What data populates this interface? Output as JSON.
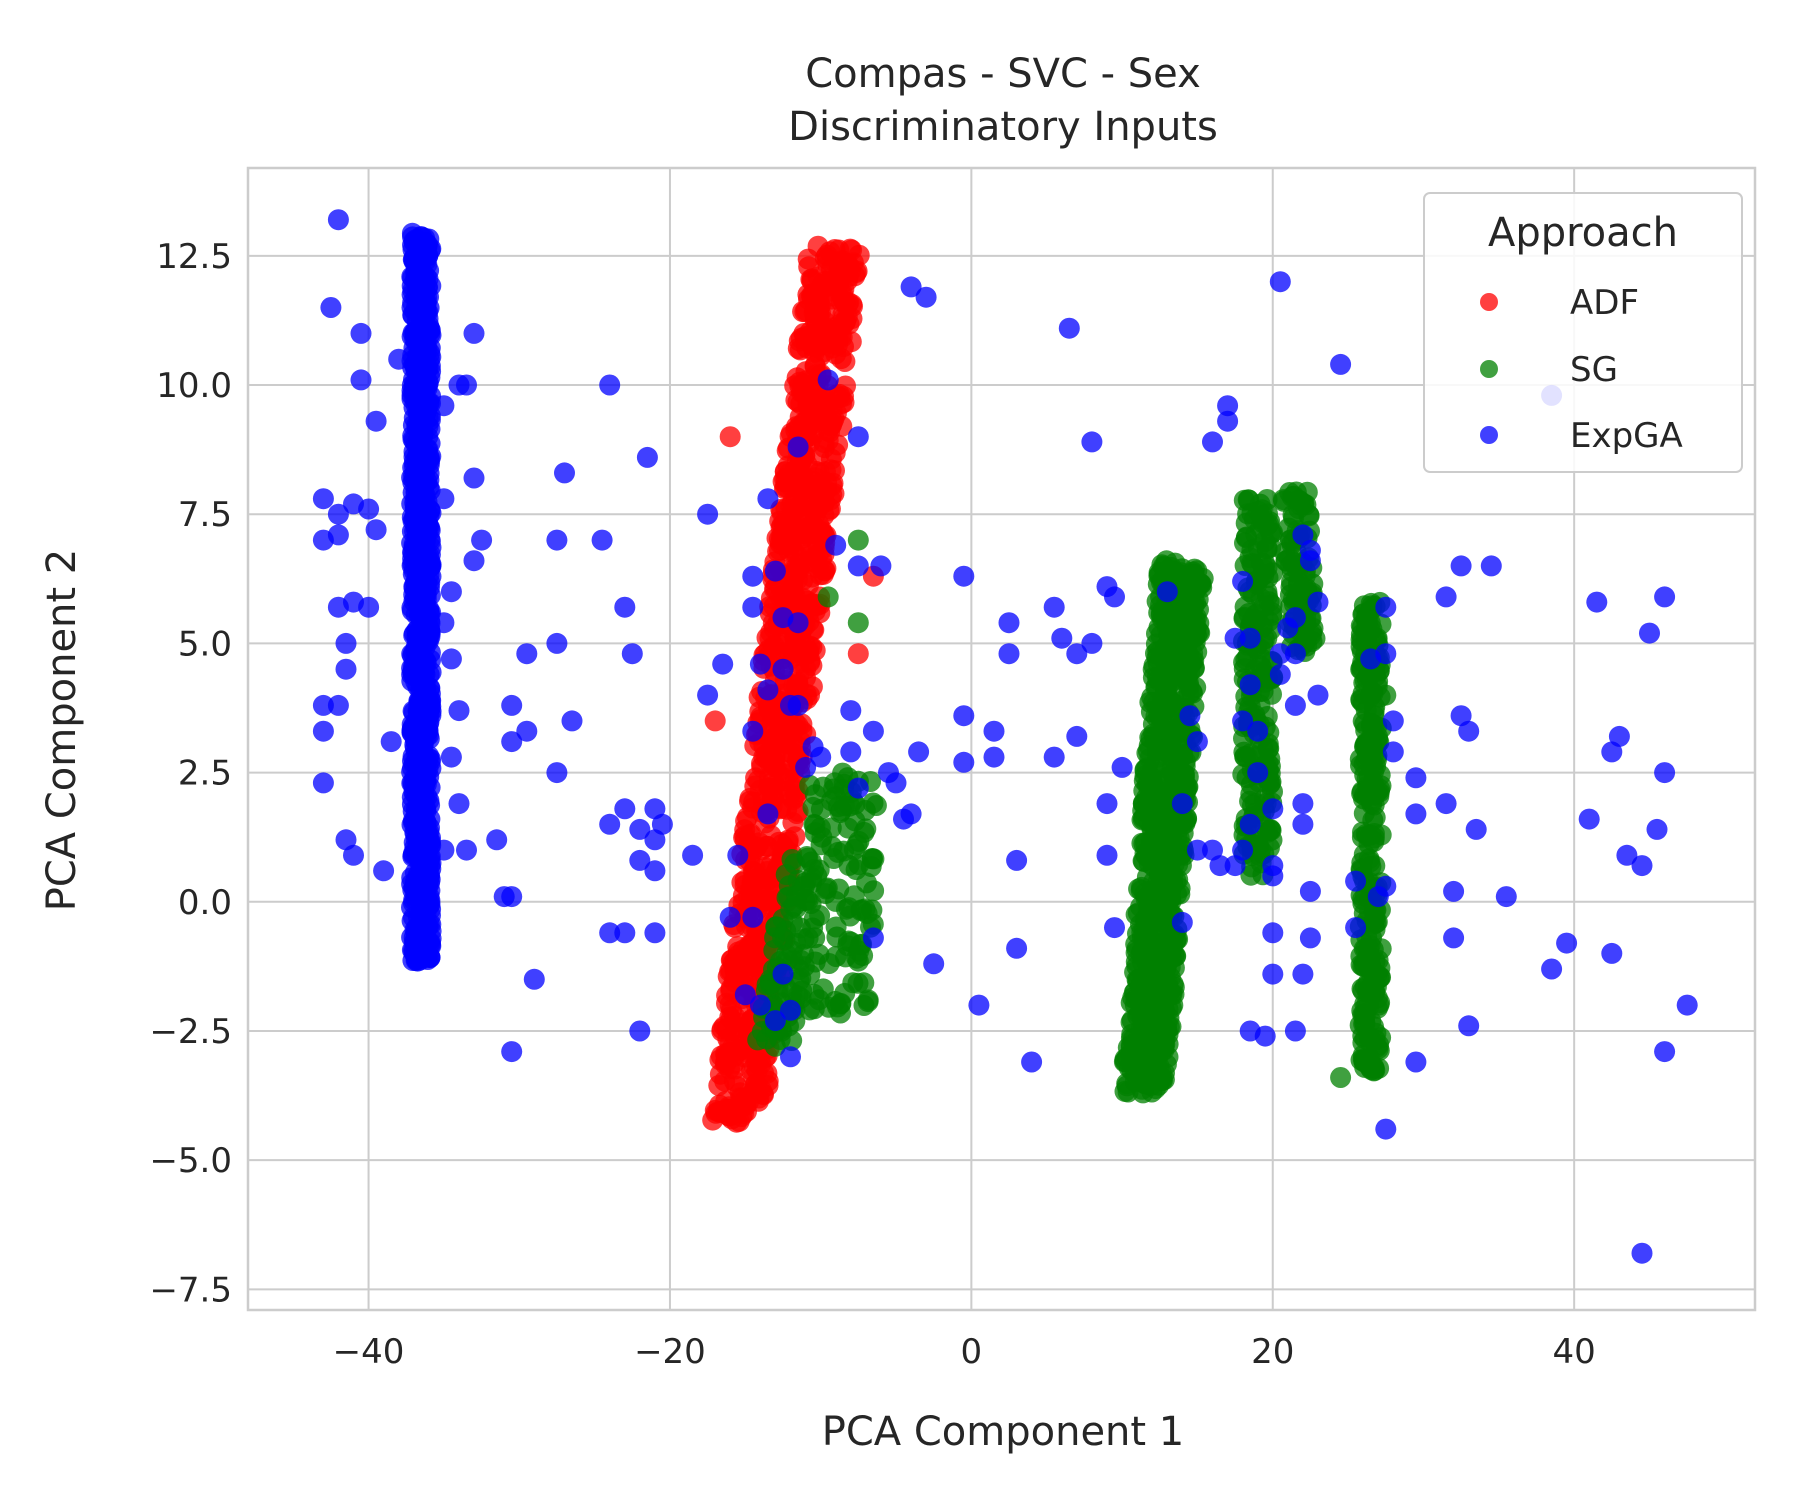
{
  "chart_data": {
    "type": "scatter",
    "title": [
      "Compas - SVC - Sex",
      "Discriminatory Inputs"
    ],
    "xlabel": "PCA Component 1",
    "ylabel": "PCA Component 2",
    "xlim": [
      -48,
      52
    ],
    "ylim": [
      -7.9,
      14.2
    ],
    "xticks": [
      -40,
      -20,
      0,
      20,
      40
    ],
    "xtick_labels": [
      "−40",
      "−20",
      "0",
      "20",
      "40"
    ],
    "yticks": [
      -7.5,
      -5.0,
      -2.5,
      0.0,
      2.5,
      5.0,
      7.5,
      10.0,
      12.5
    ],
    "ytick_labels": [
      "−7.5",
      "−5.0",
      "−2.5",
      "0.0",
      "2.5",
      "5.0",
      "7.5",
      "10.0",
      "12.5"
    ],
    "grid": true,
    "legend": {
      "title": "Approach",
      "placement": "top-right"
    },
    "marker_opacity": 0.75,
    "series": [
      {
        "name": "ADF",
        "color": "#ff0000",
        "clusters": [
          {
            "x_center": [
              -15.5,
              -9
            ],
            "y_range": [
              -4.3,
              12.7
            ],
            "x_width": 3.5,
            "count": 900
          }
        ],
        "points": [
          [
            -16,
            9.0
          ],
          [
            -7.5,
            4.8
          ],
          [
            -6.5,
            6.3
          ],
          [
            -17,
            3.5
          ]
        ]
      },
      {
        "name": "SG",
        "color": "#008000",
        "clusters": [
          {
            "x_center": [
              11.5,
              14
            ],
            "y_range": [
              -3.7,
              6.6
            ],
            "x_width": 3.0,
            "count": 700
          },
          {
            "x_center": [
              19,
              19
            ],
            "y_range": [
              0.5,
              7.8
            ],
            "x_width": 2.0,
            "count": 200
          },
          {
            "x_center": [
              22,
              21.5
            ],
            "y_range": [
              4.8,
              8.0
            ],
            "x_width": 1.8,
            "count": 90
          },
          {
            "x_center": [
              26.5,
              26.5
            ],
            "y_range": [
              -3.3,
              5.8
            ],
            "x_width": 1.4,
            "count": 260
          },
          {
            "x_center": [
              -13,
              -11
            ],
            "y_range": [
              -2.8,
              1.0
            ],
            "x_width": 2.5,
            "count": 90
          },
          {
            "x_center": [
              -8.5,
              -8.5
            ],
            "y_range": [
              -2.2,
              2.5
            ],
            "x_width": 4.5,
            "count": 110
          }
        ],
        "points": [
          [
            -9.5,
            5.9
          ],
          [
            -7.5,
            7.0
          ],
          [
            -7.5,
            5.4
          ],
          [
            24.5,
            -3.4
          ],
          [
            27.5,
            4.0
          ]
        ]
      },
      {
        "name": "ExpGA",
        "color": "#0000ff",
        "clusters": [
          {
            "x_center": [
              -36.5,
              -36.5
            ],
            "y_range": [
              -1.2,
              13.0
            ],
            "x_width": 1.3,
            "count": 800
          }
        ],
        "points": [
          [
            -42,
            13.2
          ],
          [
            -42.5,
            11.5
          ],
          [
            -40.5,
            11.0
          ],
          [
            -40.5,
            10.1
          ],
          [
            -39.5,
            9.3
          ],
          [
            -38,
            10.5
          ],
          [
            -43,
            7.8
          ],
          [
            -42,
            7.5
          ],
          [
            -41,
            7.7
          ],
          [
            -40,
            7.6
          ],
          [
            -39.5,
            7.2
          ],
          [
            -43,
            7.0
          ],
          [
            -42,
            7.1
          ],
          [
            -42,
            5.7
          ],
          [
            -41,
            5.8
          ],
          [
            -40,
            5.7
          ],
          [
            -41.5,
            5.0
          ],
          [
            -41.5,
            4.5
          ],
          [
            -43,
            3.8
          ],
          [
            -42,
            3.8
          ],
          [
            -43,
            3.3
          ],
          [
            -43,
            2.3
          ],
          [
            -38.5,
            3.1
          ],
          [
            -41.5,
            1.2
          ],
          [
            -41,
            0.9
          ],
          [
            -39,
            0.6
          ],
          [
            -34,
            10.0
          ],
          [
            -33,
            11.0
          ],
          [
            -33.5,
            10.0
          ],
          [
            -35,
            9.6
          ],
          [
            -33,
            8.2
          ],
          [
            -35,
            7.8
          ],
          [
            -32.5,
            7.0
          ],
          [
            -33,
            6.6
          ],
          [
            -34.5,
            6.0
          ],
          [
            -35,
            5.4
          ],
          [
            -34.5,
            4.7
          ],
          [
            -34,
            3.7
          ],
          [
            -34.5,
            2.8
          ],
          [
            -34,
            1.9
          ],
          [
            -35,
            1.0
          ],
          [
            -33.5,
            1.0
          ],
          [
            -31.5,
            1.2
          ],
          [
            -30.5,
            0.1
          ],
          [
            -31,
            0.1
          ],
          [
            -30.5,
            3.1
          ],
          [
            -29.5,
            3.3
          ],
          [
            -30.5,
            3.8
          ],
          [
            -29.5,
            4.8
          ],
          [
            -27.5,
            5.0
          ],
          [
            -27.5,
            2.5
          ],
          [
            -27,
            8.3
          ],
          [
            -27.5,
            7.0
          ],
          [
            -24.5,
            7.0
          ],
          [
            -26.5,
            3.5
          ],
          [
            -29,
            -1.5
          ],
          [
            -30.5,
            -2.9
          ],
          [
            -24,
            10.0
          ],
          [
            -21.5,
            8.6
          ],
          [
            -23,
            5.7
          ],
          [
            -22.5,
            4.8
          ],
          [
            -24,
            1.5
          ],
          [
            -23,
            1.8
          ],
          [
            -22,
            1.4
          ],
          [
            -21,
            1.8
          ],
          [
            -20.5,
            1.5
          ],
          [
            -21,
            1.2
          ],
          [
            -22,
            0.8
          ],
          [
            -21,
            0.6
          ],
          [
            -18.5,
            0.9
          ],
          [
            -24,
            -0.6
          ],
          [
            -23,
            -0.6
          ],
          [
            -22,
            -2.5
          ],
          [
            -21,
            -0.6
          ],
          [
            -17.5,
            7.5
          ],
          [
            -16.5,
            4.6
          ],
          [
            -17.5,
            4.0
          ],
          [
            -14.5,
            6.3
          ],
          [
            -14.5,
            5.7
          ],
          [
            -14,
            4.6
          ],
          [
            -13.5,
            4.1
          ],
          [
            -14.5,
            3.3
          ],
          [
            -12.5,
            5.5
          ],
          [
            -12,
            3.8
          ],
          [
            -11.5,
            3.8
          ],
          [
            -11.5,
            5.4
          ],
          [
            -12.5,
            4.5
          ],
          [
            -13,
            6.4
          ],
          [
            -13.5,
            7.8
          ],
          [
            -11.5,
            8.8
          ],
          [
            -9.5,
            10.1
          ],
          [
            -7.5,
            9.0
          ],
          [
            -9,
            6.9
          ],
          [
            -7.5,
            6.5
          ],
          [
            -6,
            6.5
          ],
          [
            -10.5,
            3.0
          ],
          [
            -10,
            2.8
          ],
          [
            -11,
            2.6
          ],
          [
            -8,
            3.7
          ],
          [
            -8,
            2.9
          ],
          [
            -7.5,
            2.2
          ],
          [
            -6.5,
            3.3
          ],
          [
            -5.5,
            2.5
          ],
          [
            -5,
            2.3
          ],
          [
            -4.5,
            1.6
          ],
          [
            -3.5,
            2.9
          ],
          [
            -4,
            1.7
          ],
          [
            -6.5,
            -0.7
          ],
          [
            -13.5,
            1.7
          ],
          [
            -15.5,
            0.9
          ],
          [
            -16,
            -0.3
          ],
          [
            -14.5,
            -0.3
          ],
          [
            -14,
            -2.0
          ],
          [
            -12,
            -2.1
          ],
          [
            -12.5,
            -1.4
          ],
          [
            -12,
            -3.0
          ],
          [
            -13,
            -2.3
          ],
          [
            -15,
            -1.8
          ],
          [
            -4,
            11.9
          ],
          [
            -3,
            11.7
          ],
          [
            -0.5,
            6.3
          ],
          [
            -0.5,
            3.6
          ],
          [
            -0.5,
            2.7
          ],
          [
            1.5,
            3.3
          ],
          [
            1.5,
            2.8
          ],
          [
            2.5,
            4.8
          ],
          [
            2.5,
            5.4
          ],
          [
            3,
            0.8
          ],
          [
            3,
            -0.9
          ],
          [
            0.5,
            -2.0
          ],
          [
            -2.5,
            -1.2
          ],
          [
            4,
            -3.1
          ],
          [
            5.5,
            2.8
          ],
          [
            5.5,
            5.7
          ],
          [
            6,
            5.1
          ],
          [
            6.5,
            11.1
          ],
          [
            7,
            4.8
          ],
          [
            7,
            3.2
          ],
          [
            8,
            5.0
          ],
          [
            8,
            8.9
          ],
          [
            9,
            6.1
          ],
          [
            9.5,
            5.9
          ],
          [
            9,
            1.9
          ],
          [
            9,
            0.9
          ],
          [
            9.5,
            -0.5
          ],
          [
            10,
            2.6
          ],
          [
            13,
            6.0
          ],
          [
            14,
            1.9
          ],
          [
            14,
            -0.4
          ],
          [
            14.5,
            3.6
          ],
          [
            15,
            3.1
          ],
          [
            15,
            1.0
          ],
          [
            16,
            1.0
          ],
          [
            16.5,
            0.7
          ],
          [
            17,
            9.6
          ],
          [
            17,
            9.3
          ],
          [
            16,
            8.9
          ],
          [
            18,
            6.2
          ],
          [
            18.5,
            5.1
          ],
          [
            17.5,
            5.1
          ],
          [
            18.5,
            4.2
          ],
          [
            18,
            3.5
          ],
          [
            19,
            3.3
          ],
          [
            19,
            2.5
          ],
          [
            18.5,
            1.5
          ],
          [
            18,
            1.0
          ],
          [
            17.5,
            0.7
          ],
          [
            20,
            1.8
          ],
          [
            20,
            0.7
          ],
          [
            20,
            0.5
          ],
          [
            20,
            -0.6
          ],
          [
            20,
            -1.4
          ],
          [
            18.5,
            -2.5
          ],
          [
            19.5,
            -2.6
          ],
          [
            20.5,
            4.4
          ],
          [
            20.5,
            4.8
          ],
          [
            21,
            5.3
          ],
          [
            21.5,
            5.5
          ],
          [
            21.5,
            4.8
          ],
          [
            21.5,
            3.8
          ],
          [
            22,
            7.1
          ],
          [
            22.5,
            6.8
          ],
          [
            22.5,
            6.6
          ],
          [
            23,
            4.0
          ],
          [
            22,
            1.9
          ],
          [
            22,
            1.5
          ],
          [
            22.5,
            0.2
          ],
          [
            22.5,
            -0.7
          ],
          [
            22,
            -1.4
          ],
          [
            21.5,
            -2.5
          ],
          [
            20.5,
            12.0
          ],
          [
            24.5,
            10.4
          ],
          [
            23,
            5.8
          ],
          [
            25.5,
            0.4
          ],
          [
            25.5,
            -0.5
          ],
          [
            27.5,
            5.7
          ],
          [
            27.5,
            4.8
          ],
          [
            28,
            3.5
          ],
          [
            28,
            2.9
          ],
          [
            26.5,
            4.7
          ],
          [
            29.5,
            2.4
          ],
          [
            29.5,
            1.7
          ],
          [
            27.5,
            0.3
          ],
          [
            27,
            0.1
          ],
          [
            29.5,
            -3.1
          ],
          [
            27.5,
            -4.4
          ],
          [
            31.5,
            5.9
          ],
          [
            32.5,
            6.5
          ],
          [
            34.5,
            6.5
          ],
          [
            32.5,
            3.6
          ],
          [
            33,
            3.3
          ],
          [
            31.5,
            1.9
          ],
          [
            33.5,
            1.4
          ],
          [
            32,
            0.2
          ],
          [
            32,
            -0.7
          ],
          [
            33,
            -2.4
          ],
          [
            35.5,
            0.1
          ],
          [
            38.5,
            9.8
          ],
          [
            38.5,
            -1.3
          ],
          [
            39.5,
            -0.8
          ],
          [
            41,
            1.6
          ],
          [
            41.5,
            5.8
          ],
          [
            42.5,
            -1.0
          ],
          [
            42.5,
            2.9
          ],
          [
            43,
            3.2
          ],
          [
            43.5,
            0.9
          ],
          [
            44.5,
            0.7
          ],
          [
            45,
            5.2
          ],
          [
            45.5,
            1.4
          ],
          [
            46,
            5.9
          ],
          [
            46,
            2.5
          ],
          [
            46,
            -2.9
          ],
          [
            47.5,
            -2.0
          ],
          [
            44.5,
            -6.8
          ]
        ]
      }
    ]
  }
}
